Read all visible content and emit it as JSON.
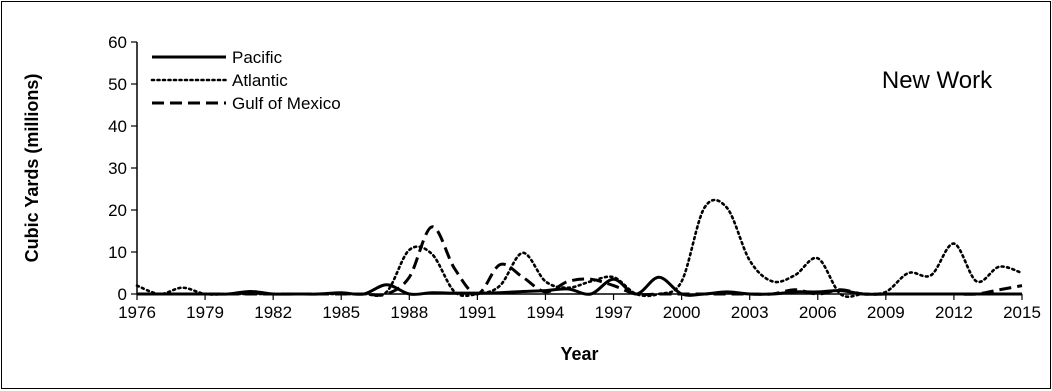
{
  "chart_data": {
    "type": "line",
    "title": "",
    "annotation": "New Work",
    "xlabel": "Year",
    "ylabel": "Cubic Yards (millions)",
    "xlim": [
      1976,
      2015
    ],
    "ylim": [
      0,
      60
    ],
    "x_ticks": [
      "1976",
      "1979",
      "1982",
      "1985",
      "1988",
      "1991",
      "1994",
      "1997",
      "2000",
      "2003",
      "2006",
      "2009",
      "2012",
      "2015"
    ],
    "y_ticks": [
      "0",
      "10",
      "20",
      "30",
      "40",
      "50",
      "60"
    ],
    "grid": false,
    "legend_position": "top-left",
    "x": [
      1976,
      1977,
      1978,
      1979,
      1980,
      1981,
      1982,
      1983,
      1984,
      1985,
      1986,
      1987,
      1988,
      1989,
      1990,
      1991,
      1992,
      1993,
      1994,
      1995,
      1996,
      1997,
      1998,
      1999,
      2000,
      2001,
      2002,
      2003,
      2004,
      2005,
      2006,
      2007,
      2008,
      2009,
      2010,
      2011,
      2012,
      2013,
      2014,
      2015
    ],
    "series": [
      {
        "name": "Pacific",
        "style": "solid",
        "color": "#000000",
        "values": [
          0,
          0,
          0,
          0,
          0,
          0.6,
          0,
          0,
          0,
          0.3,
          0,
          2.2,
          0,
          0.3,
          0.2,
          0.2,
          0.3,
          0.6,
          0.8,
          1.2,
          0,
          3.5,
          0,
          4.0,
          0,
          0,
          0.5,
          0,
          0,
          0.5,
          0.5,
          0.8,
          0,
          0,
          0,
          0,
          0,
          0,
          0,
          0
        ]
      },
      {
        "name": "Atlantic",
        "style": "dotted",
        "color": "#000000",
        "values": [
          2.0,
          0,
          1.5,
          0,
          0,
          0,
          0,
          0,
          0,
          0,
          0,
          0.5,
          10.5,
          9.5,
          0.5,
          0,
          2.0,
          9.8,
          3.0,
          1.5,
          3.0,
          4.0,
          0,
          0,
          3.0,
          20.5,
          20.5,
          8.0,
          3.0,
          4.5,
          8.5,
          0,
          0,
          0.5,
          5.0,
          4.5,
          12.0,
          3.0,
          6.5,
          5.0
        ]
      },
      {
        "name": "Gulf of Mexico",
        "style": "dashed",
        "color": "#000000",
        "values": [
          0,
          0,
          0,
          0,
          0,
          0,
          0,
          0,
          0,
          0,
          0,
          0,
          4.0,
          16.0,
          6.0,
          0,
          7.0,
          4.0,
          0.5,
          3.0,
          3.5,
          2.0,
          0,
          0,
          0,
          0,
          0,
          0,
          0,
          1.0,
          0,
          1.0,
          0,
          0,
          0,
          0,
          0,
          0,
          1.0,
          2.0
        ]
      }
    ]
  }
}
